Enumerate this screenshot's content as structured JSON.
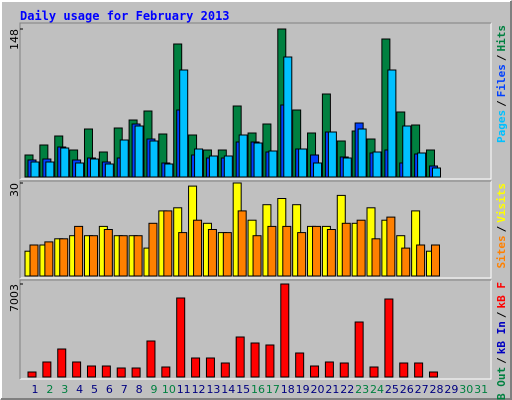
{
  "chart_data": [
    {
      "type": "bar",
      "title": "Daily usage for February 2013",
      "ylim": [
        0,
        148
      ],
      "yticks": [
        148
      ],
      "legend_separator": "/",
      "series": [
        {
          "name": "Hits",
          "color": "#008040",
          "values": [
            22,
            32,
            41,
            27,
            48,
            25,
            49,
            57,
            66,
            43,
            133,
            42,
            27,
            27,
            71,
            44,
            53,
            148,
            67,
            44,
            83,
            36,
            46,
            38,
            138,
            65,
            52,
            27,
            null,
            null,
            null
          ]
        },
        {
          "name": "Files",
          "color": "#0040ff",
          "values": [
            17,
            18,
            30,
            17,
            19,
            15,
            19,
            53,
            38,
            14,
            67,
            22,
            19,
            19,
            35,
            35,
            25,
            72,
            28,
            22,
            45,
            20,
            54,
            24,
            27,
            14,
            23,
            11,
            null,
            null,
            null
          ]
        },
        {
          "name": "Pages",
          "color": "#00c0ff",
          "values": [
            15,
            15,
            29,
            14,
            18,
            13,
            37,
            51,
            36,
            13,
            107,
            28,
            21,
            21,
            42,
            34,
            26,
            120,
            28,
            14,
            45,
            19,
            48,
            25,
            107,
            51,
            24,
            9,
            null,
            null,
            null
          ]
        }
      ]
    },
    {
      "type": "bar",
      "ylim": [
        0,
        30
      ],
      "yticks": [
        30
      ],
      "legend_separator": "/",
      "series": [
        {
          "name": "Visits",
          "color": "#ffff00",
          "values": [
            8,
            10,
            12,
            13,
            13,
            16,
            13,
            13,
            9,
            21,
            22,
            29,
            17,
            14,
            30,
            18,
            23,
            25,
            23,
            16,
            16,
            26,
            17,
            22,
            18,
            13,
            21,
            8,
            null,
            null,
            null
          ]
        },
        {
          "name": "Sites",
          "color": "#ff8000",
          "values": [
            10,
            11,
            12,
            16,
            13,
            15,
            13,
            13,
            17,
            21,
            14,
            18,
            15,
            14,
            21,
            13,
            16,
            16,
            14,
            16,
            15,
            17,
            18,
            12,
            19,
            9,
            10,
            10,
            null,
            null,
            null
          ]
        }
      ]
    },
    {
      "type": "bar",
      "ylim": [
        0,
        7003
      ],
      "yticks": [
        7003
      ],
      "legend_separator": "/",
      "categories": [
        "1",
        "2",
        "3",
        "4",
        "5",
        "6",
        "7",
        "8",
        "9",
        "10",
        "11",
        "12",
        "13",
        "14",
        "15",
        "16",
        "17",
        "18",
        "19",
        "20",
        "21",
        "22",
        "23",
        "24",
        "25",
        "26",
        "27",
        "28",
        "29",
        "30",
        "31"
      ],
      "category_colors": [
        "#000080",
        "#008040",
        "#008040",
        "#000080",
        "#000080",
        "#000080",
        "#000080",
        "#000080",
        "#008040",
        "#008040",
        "#000080",
        "#000080",
        "#000080",
        "#000080",
        "#000080",
        "#008040",
        "#008040",
        "#000080",
        "#000080",
        "#000080",
        "#000080",
        "#000080",
        "#008040",
        "#008040",
        "#000080",
        "#000080",
        "#000080",
        "#000080",
        "#000080",
        "#008040",
        "#008040"
      ],
      "series": [
        {
          "name": "kB F",
          "color": "#ff0000",
          "values": [
            376,
            1130,
            2108,
            1130,
            828,
            828,
            678,
            678,
            2711,
            753,
            5949,
            1431,
            1431,
            1054,
            3012,
            2560,
            2410,
            7003,
            1807,
            828,
            1130,
            1054,
            4141,
            753,
            5873,
            1054,
            1054,
            376,
            null,
            null,
            null
          ]
        },
        {
          "name": "kB In",
          "color": "#0000c0",
          "values": [
            null,
            null,
            null,
            null,
            null,
            null,
            null,
            null,
            null,
            null,
            null,
            null,
            null,
            null,
            null,
            null,
            null,
            null,
            null,
            null,
            null,
            null,
            null,
            null,
            null,
            null,
            null,
            null,
            null,
            null,
            null
          ]
        },
        {
          "name": "kB Out",
          "color": "#008040",
          "values": [
            null,
            null,
            null,
            null,
            null,
            null,
            null,
            null,
            null,
            null,
            null,
            null,
            null,
            null,
            null,
            null,
            null,
            null,
            null,
            null,
            null,
            null,
            null,
            null,
            null,
            null,
            null,
            null,
            null,
            null,
            null
          ]
        }
      ]
    }
  ]
}
